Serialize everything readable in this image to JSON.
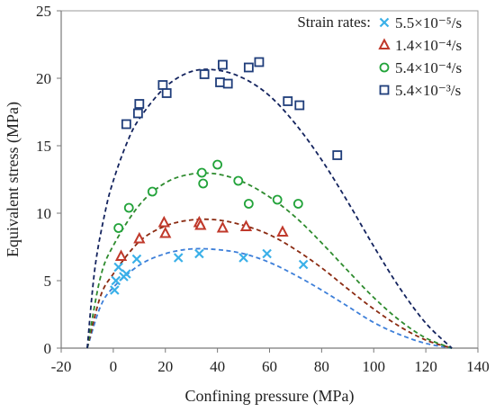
{
  "chart_data": {
    "type": "scatter",
    "xlabel": "Confining pressure (MPa)",
    "ylabel": "Equivalent stress (MPa)",
    "xlim": [
      -20,
      140
    ],
    "ylim": [
      0,
      25
    ],
    "xticks": [
      -20,
      0,
      20,
      40,
      60,
      80,
      100,
      120,
      140
    ],
    "yticks": [
      0,
      5,
      10,
      15,
      20,
      25
    ],
    "grid": false,
    "legend_title": "Strain rates:",
    "legend_position": "top-right",
    "series": [
      {
        "name": "5.5×10⁻⁵/s",
        "marker": "cross",
        "color": "#3ab0e8",
        "points": [
          [
            0.5,
            4.3
          ],
          [
            1,
            5.0
          ],
          [
            2,
            6.0
          ],
          [
            4,
            5.3
          ],
          [
            5,
            5.5
          ],
          [
            9,
            6.6
          ],
          [
            25,
            6.7
          ],
          [
            33,
            7.0
          ],
          [
            50,
            6.7
          ],
          [
            59,
            7.0
          ],
          [
            73,
            6.2
          ]
        ],
        "fit": {
          "color": "#3d7fd9",
          "points": [
            [
              -10,
              0
            ],
            [
              -5,
              3.05
            ],
            [
              0,
              4.5
            ],
            [
              10,
              6.15
            ],
            [
              20,
              7.0
            ],
            [
              30,
              7.35
            ],
            [
              40,
              7.3
            ],
            [
              50,
              7.0
            ],
            [
              60,
              6.35
            ],
            [
              70,
              5.4
            ],
            [
              80,
              4.3
            ],
            [
              90,
              3.1
            ],
            [
              100,
              1.9
            ],
            [
              110,
              1.0
            ],
            [
              120,
              0.35
            ],
            [
              130,
              0
            ]
          ]
        }
      },
      {
        "name": "1.4×10⁻⁴/s",
        "marker": "triangle",
        "color": "#c0392b",
        "points": [
          [
            3,
            6.8
          ],
          [
            10,
            8.1
          ],
          [
            19.5,
            9.3
          ],
          [
            20,
            8.5
          ],
          [
            33,
            9.3
          ],
          [
            33.5,
            9.1
          ],
          [
            42,
            8.9
          ],
          [
            51,
            9.0
          ],
          [
            65,
            8.6
          ]
        ],
        "fit": {
          "color": "#8b2b12",
          "points": [
            [
              -10,
              0
            ],
            [
              -5,
              3.8
            ],
            [
              0,
              5.5
            ],
            [
              10,
              7.9
            ],
            [
              20,
              9.05
            ],
            [
              30,
              9.5
            ],
            [
              40,
              9.5
            ],
            [
              50,
              9.1
            ],
            [
              60,
              8.4
            ],
            [
              70,
              7.3
            ],
            [
              80,
              5.95
            ],
            [
              90,
              4.4
            ],
            [
              100,
              2.9
            ],
            [
              110,
              1.6
            ],
            [
              120,
              0.6
            ],
            [
              130,
              0
            ]
          ]
        }
      },
      {
        "name": "5.4×10⁻⁴/s",
        "marker": "circle",
        "color": "#22a33a",
        "points": [
          [
            2,
            8.9
          ],
          [
            6,
            10.4
          ],
          [
            15,
            11.6
          ],
          [
            34,
            13.0
          ],
          [
            34.5,
            12.2
          ],
          [
            40,
            13.6
          ],
          [
            48,
            12.4
          ],
          [
            52,
            10.7
          ],
          [
            63,
            11.0
          ],
          [
            71,
            10.7
          ]
        ],
        "fit": {
          "color": "#2e8b2e",
          "points": [
            [
              -10,
              0
            ],
            [
              -5,
              5.2
            ],
            [
              0,
              7.6
            ],
            [
              10,
              10.6
            ],
            [
              20,
              12.25
            ],
            [
              30,
              12.9
            ],
            [
              40,
              12.9
            ],
            [
              50,
              12.3
            ],
            [
              60,
              11.2
            ],
            [
              70,
              9.7
            ],
            [
              80,
              7.8
            ],
            [
              90,
              5.75
            ],
            [
              100,
              3.75
            ],
            [
              110,
              2.05
            ],
            [
              120,
              0.75
            ],
            [
              130,
              0
            ]
          ]
        }
      },
      {
        "name": "5.4×10⁻³/s",
        "marker": "square",
        "color": "#1f3d7a",
        "points": [
          [
            5,
            16.6
          ],
          [
            9.5,
            17.4
          ],
          [
            10,
            18.1
          ],
          [
            19,
            19.5
          ],
          [
            20.5,
            18.9
          ],
          [
            35,
            20.3
          ],
          [
            41,
            19.7
          ],
          [
            42,
            21.0
          ],
          [
            44,
            19.6
          ],
          [
            52,
            20.8
          ],
          [
            56,
            21.2
          ],
          [
            67,
            18.3
          ],
          [
            71.5,
            18.0
          ],
          [
            86,
            14.3
          ]
        ],
        "fit": {
          "color": "#13235e",
          "points": [
            [
              -10,
              0
            ],
            [
              -7,
              6.0
            ],
            [
              -3,
              10.2
            ],
            [
              0,
              12.4
            ],
            [
              5,
              15.1
            ],
            [
              10,
              17.0
            ],
            [
              20,
              19.35
            ],
            [
              30,
              20.5
            ],
            [
              40,
              20.6
            ],
            [
              50,
              20.0
            ],
            [
              60,
              18.7
            ],
            [
              70,
              16.6
            ],
            [
              80,
              13.95
            ],
            [
              90,
              10.85
            ],
            [
              100,
              7.55
            ],
            [
              110,
              4.45
            ],
            [
              120,
              1.85
            ],
            [
              130,
              0
            ]
          ]
        }
      }
    ]
  }
}
